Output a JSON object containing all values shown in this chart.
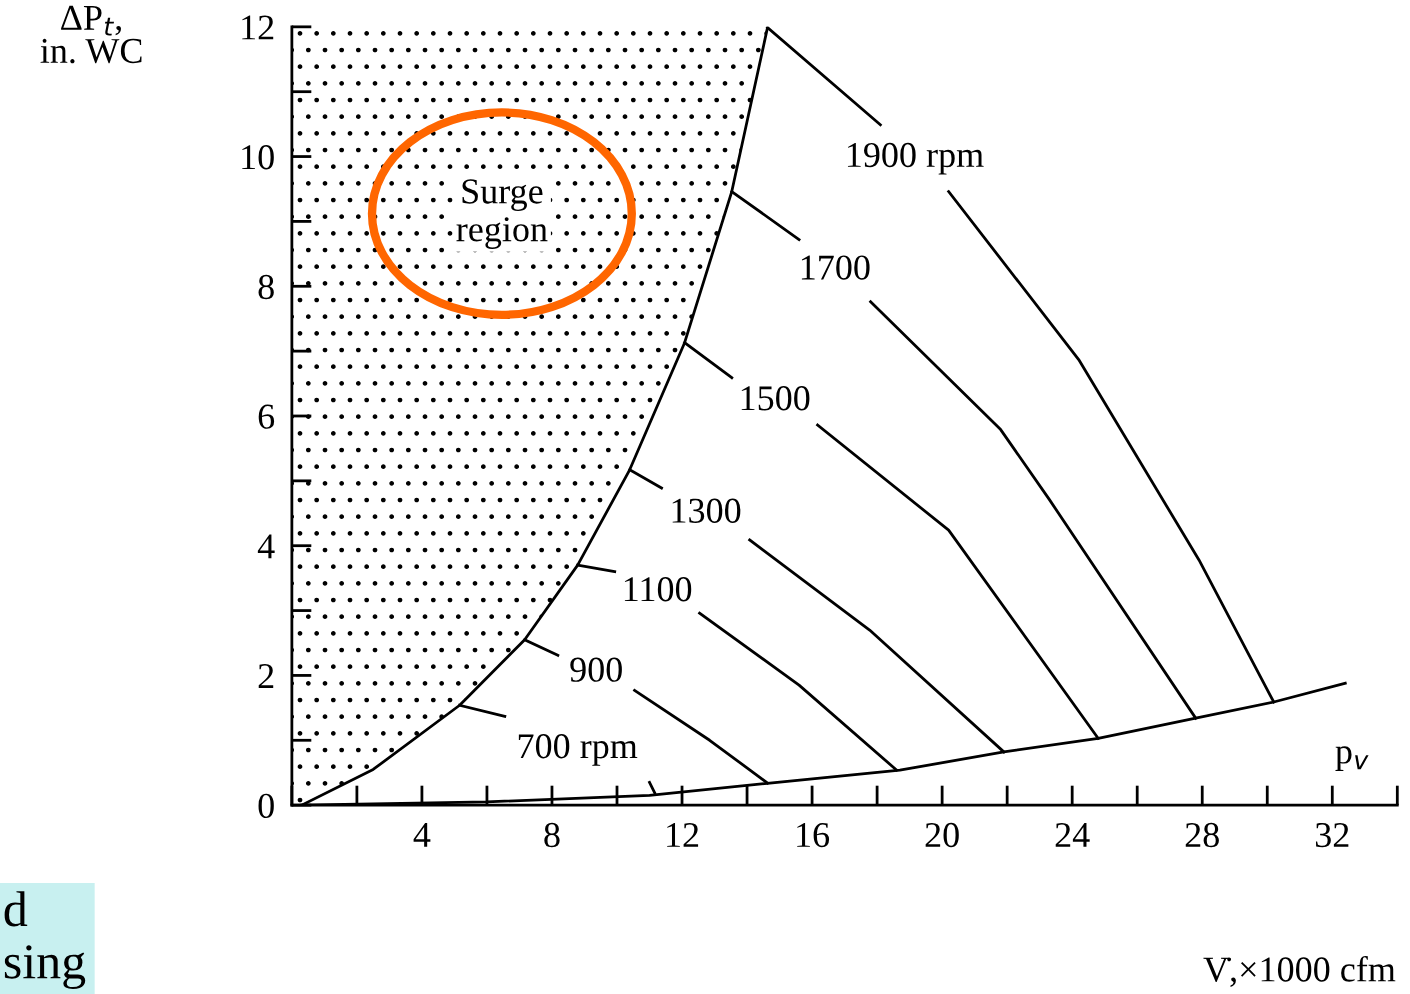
{
  "chart_data": {
    "type": "line",
    "xlabel": "V̇,×1000 cfm",
    "ylabel": "ΔP$_{t}$,\nin. WC",
    "xlim": [
      0,
      34
    ],
    "ylim": [
      0,
      12
    ],
    "xticks": [
      4,
      8,
      12,
      16,
      20,
      24,
      28,
      32
    ],
    "yticks": [
      0,
      2,
      4,
      6,
      8,
      10,
      12
    ],
    "grid": false,
    "legend": false,
    "marker": "none",
    "line_style": "solid",
    "series": [
      {
        "color": "#000000",
        "x": [
          0.3,
          2.5,
          5.16,
          7.16,
          8.79,
          10.39,
          12.08,
          13.53,
          14.63
        ],
        "values": [
          0,
          0.55,
          1.54,
          2.55,
          3.7,
          5.17,
          7.13,
          9.46,
          11.99
        ]
      },
      {
        "name": "p$_{v}$",
        "color": "#000000",
        "x": [
          0.3,
          6.0,
          11.0,
          14.7,
          18.7,
          21.9,
          24.8,
          27.8,
          30.2,
          32.4
        ],
        "values": [
          0,
          0.05,
          0.15,
          0.34,
          0.54,
          0.82,
          1.03,
          1.34,
          1.59,
          1.88
        ]
      },
      {
        "name": "700 rpm",
        "color": "#000000",
        "x": [
          5.16,
          6.55,
          8.0,
          11.0,
          11.16
        ],
        "values": [
          1.54,
          1.37,
          null,
          0.35,
          0.19
        ]
      },
      {
        "name": "900",
        "color": "#000000",
        "x": [
          7.16,
          8.18,
          9.5,
          10.54,
          12.85,
          14.63
        ],
        "values": [
          2.55,
          2.31,
          null,
          1.77,
          1.0,
          0.34
        ]
      },
      {
        "name": "1100",
        "color": "#000000",
        "x": [
          8.79,
          9.93,
          11.0,
          12.54,
          15.6,
          18.6
        ],
        "values": [
          3.7,
          3.6,
          null,
          2.96,
          1.85,
          0.54
        ]
      },
      {
        "name": "1300",
        "color": "#000000",
        "x": [
          10.39,
          11.37,
          12.5,
          14.08,
          17.77,
          21.9
        ],
        "values": [
          5.17,
          4.89,
          null,
          4.09,
          2.7,
          0.82
        ]
      },
      {
        "name": "1500",
        "color": "#000000",
        "x": [
          12.08,
          13.53,
          15.0,
          16.17,
          20.2,
          24.8
        ],
        "values": [
          7.13,
          6.59,
          null,
          5.86,
          4.24,
          1.03
        ]
      },
      {
        "name": "1700",
        "color": "#000000",
        "x": [
          13.53,
          15.6,
          16.5,
          17.8,
          21.8,
          23.3,
          27.8
        ],
        "values": [
          9.46,
          8.72,
          null,
          7.76,
          5.79,
          4.71,
          1.34
        ]
      },
      {
        "name": "1900 rpm",
        "color": "#000000",
        "x": [
          14.63,
          18.1,
          19.0,
          20.2,
          24.2,
          27.9,
          30.2
        ],
        "values": [
          11.99,
          10.49,
          null,
          9.46,
          6.87,
          3.78,
          1.59
        ]
      }
    ],
    "annotations": [
      "Surge\nregion",
      "d\nsing"
    ]
  }
}
